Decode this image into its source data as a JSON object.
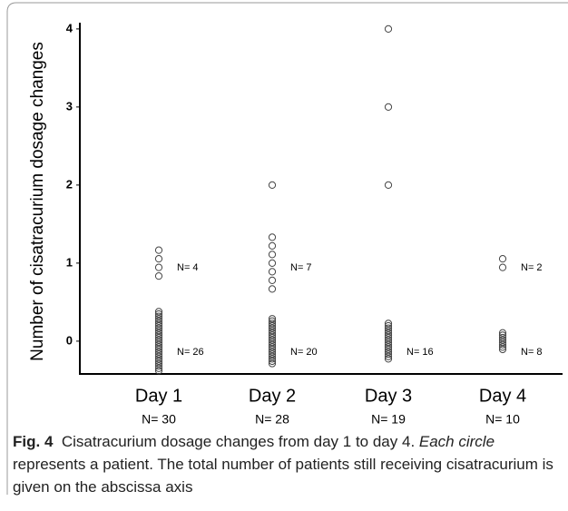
{
  "chart_data": {
    "type": "strip",
    "y_label": "Number of cisatracurium dosage changes",
    "categories": [
      "Day 1",
      "Day 2",
      "Day 3",
      "Day 4"
    ],
    "category_sublabels": [
      "N= 30",
      "N= 28",
      "N= 19",
      "N= 10"
    ],
    "series": [
      {
        "values": [
          0,
          0,
          0,
          0,
          0,
          0,
          0,
          0,
          0,
          0,
          0,
          0,
          0,
          0,
          0,
          0,
          0,
          0,
          0,
          0,
          0,
          0,
          0,
          0,
          0,
          0,
          1,
          1,
          1,
          1
        ],
        "group_labels": [
          "N= 26",
          "N= 4"
        ]
      },
      {
        "values": [
          0,
          0,
          0,
          0,
          0,
          0,
          0,
          0,
          0,
          0,
          0,
          0,
          0,
          0,
          0,
          0,
          0,
          0,
          0,
          0,
          1,
          1,
          1,
          1,
          1,
          1,
          1,
          2
        ],
        "group_labels": [
          "N= 20",
          "N= 7"
        ]
      },
      {
        "values": [
          0,
          0,
          0,
          0,
          0,
          0,
          0,
          0,
          0,
          0,
          0,
          0,
          0,
          0,
          0,
          0,
          2,
          3,
          4
        ],
        "group_labels": [
          "N= 16"
        ]
      },
      {
        "values": [
          0,
          0,
          0,
          0,
          0,
          0,
          0,
          0,
          1,
          1
        ],
        "group_labels": [
          "N= 8",
          "N= 2"
        ]
      }
    ],
    "color": "#444444",
    "ylim": [
      -0.42,
      4.08
    ],
    "yticks": [
      0,
      1,
      2,
      3,
      4
    ]
  },
  "caption": {
    "parts": [
      {
        "text": "Fig. 4",
        "style": "bold"
      },
      {
        "text": "  Cisatracurium dosage changes from day 1 to day 4. ",
        "style": "normal"
      },
      {
        "text": "Each circle",
        "style": "italic"
      },
      {
        "text": " represents a patient. The total number of patients still receiving cisatracurium is given on the abscissa axis",
        "style": "normal"
      }
    ]
  }
}
